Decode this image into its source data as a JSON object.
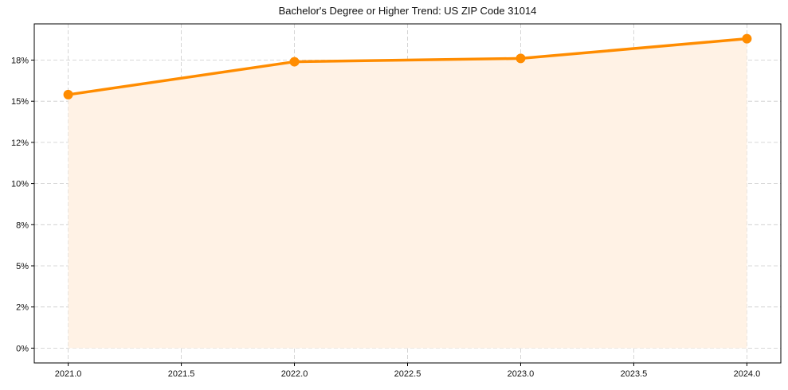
{
  "chart_data": {
    "type": "line",
    "title": "Bachelor's Degree or Higher Trend: US ZIP Code 31014",
    "xlabel": "",
    "ylabel": "",
    "x": [
      2021,
      2022,
      2023,
      2024
    ],
    "series": [
      {
        "name": "Bachelor's Degree or Higher",
        "values": [
          15.4,
          17.4,
          17.6,
          18.8
        ],
        "unit": "%",
        "color": "#ff8c00",
        "fill_color": "#fff2e5",
        "marker": "circle"
      }
    ],
    "xlim": [
      2020.85,
      2024.15
    ],
    "ylim": [
      -0.9,
      19.7
    ],
    "x_ticks": [
      2021.0,
      2021.5,
      2022.0,
      2022.5,
      2023.0,
      2023.5,
      2024.0
    ],
    "x_tick_labels": [
      "2021.0",
      "2021.5",
      "2022.0",
      "2022.5",
      "2023.0",
      "2023.5",
      "2024.0"
    ],
    "y_ticks": [
      0,
      2.5,
      5,
      7.5,
      10,
      12.5,
      15,
      17.5
    ],
    "y_tick_labels": [
      "0%",
      "2%",
      "5%",
      "8%",
      "10%",
      "12%",
      "15%",
      "18%"
    ],
    "grid": true,
    "grid_style": "dashed",
    "legend": null
  }
}
